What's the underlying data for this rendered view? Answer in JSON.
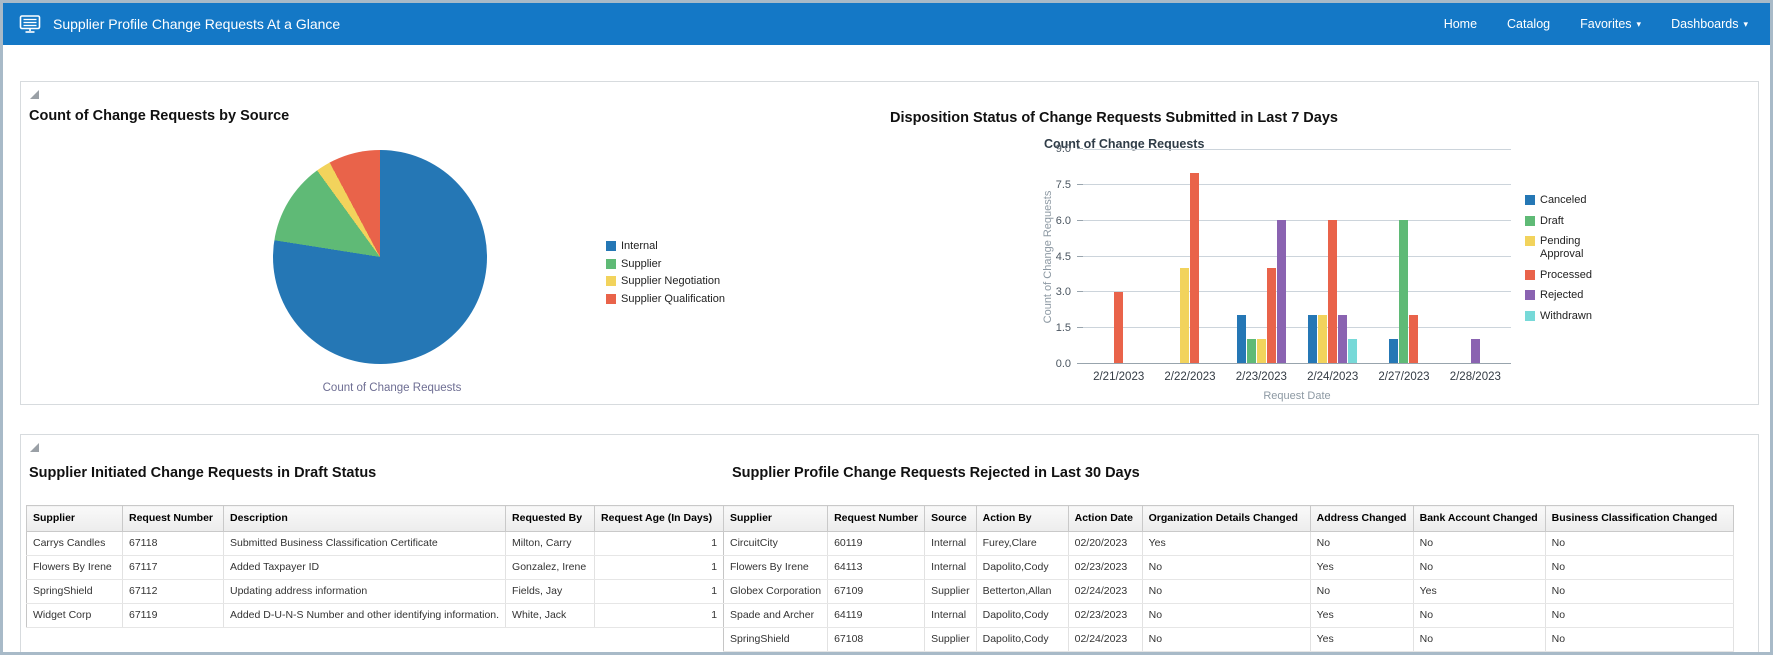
{
  "header": {
    "icon": "dashboard-monitor-icon",
    "title": "Supplier Profile Change Requests At a Glance",
    "nav": [
      {
        "label": "Home",
        "has_dropdown": false
      },
      {
        "label": "Catalog",
        "has_dropdown": false
      },
      {
        "label": "Favorites",
        "has_dropdown": true
      },
      {
        "label": "Dashboards",
        "has_dropdown": true
      }
    ]
  },
  "colors": {
    "header_bg": "#1478c6",
    "grid_line": "#ccd4db",
    "axis_line": "#98a4ad",
    "section_border": "#d7dbde"
  },
  "chart_data": [
    {
      "type": "pie",
      "title": "Count of Change Requests by Source",
      "footer_label": "Count of Change Requests",
      "labels": [
        "Internal",
        "Supplier",
        "Supplier Negotiation",
        "Supplier Qualification"
      ],
      "values_percent": [
        77.5,
        12.5,
        2.2,
        7.8
      ],
      "colors": [
        "#2577b5",
        "#5fba76",
        "#f2d35c",
        "#e9634a"
      ],
      "legend_position": "right"
    },
    {
      "type": "bar",
      "title": "Disposition Status of Change Requests Submitted in Last 7 Days",
      "subtitle": "Count of Change Requests",
      "xlabel": "Request Date",
      "ylabel": "Count of Change Requests",
      "ylim": [
        0,
        9
      ],
      "yticks": [
        0.0,
        1.5,
        3.0,
        4.5,
        6.0,
        7.5,
        9.0
      ],
      "grid": true,
      "legend_position": "right",
      "categories": [
        "2/21/2023",
        "2/22/2023",
        "2/23/2023",
        "2/24/2023",
        "2/27/2023",
        "2/28/2023"
      ],
      "series": [
        {
          "name": "Canceled",
          "color": "#2577b5",
          "values": [
            0,
            0,
            2,
            2,
            1,
            0
          ]
        },
        {
          "name": "Draft",
          "color": "#5fba76",
          "values": [
            0,
            0,
            1,
            0,
            6,
            0
          ]
        },
        {
          "name": "Pending Approval",
          "color": "#f2d35c",
          "values": [
            0,
            4,
            1,
            2,
            0,
            0
          ]
        },
        {
          "name": "Processed",
          "color": "#e9634a",
          "values": [
            3,
            8,
            4,
            6,
            2,
            0
          ]
        },
        {
          "name": "Rejected",
          "color": "#8a63b1",
          "values": [
            0,
            0,
            6,
            2,
            0,
            1
          ]
        },
        {
          "name": "Withdrawn",
          "color": "#77d9d8",
          "values": [
            0,
            0,
            0,
            1,
            0,
            0
          ]
        }
      ]
    }
  ],
  "tables": [
    {
      "title": "Supplier Initiated Change Requests in Draft Status",
      "columns": [
        "Supplier",
        "Request Number",
        "Description",
        "Requested By",
        "Request Age (In Days)"
      ],
      "rows": [
        [
          "Carrys Candles",
          "67118",
          "Submitted Business Classification Certificate",
          "Milton, Carry",
          "1"
        ],
        [
          "Flowers By Irene",
          "67117",
          "Added Taxpayer ID",
          "Gonzalez, Irene",
          "1"
        ],
        [
          "SpringShield",
          "67112",
          "Updating address information",
          "Fields, Jay",
          "1"
        ],
        [
          "Widget Corp",
          "67119",
          "Added D-U-N-S Number and other identifying information.",
          "White, Jack",
          "1"
        ]
      ]
    },
    {
      "title": "Supplier Profile Change Requests Rejected in Last 30 Days",
      "columns": [
        "Supplier",
        "Request Number",
        "Source",
        "Action By",
        "Action Date",
        "Organization Details Changed",
        "Address Changed",
        "Bank Account Changed",
        "Business Classification Changed"
      ],
      "rows": [
        [
          "CircuitCity",
          "60119",
          "Internal",
          "Furey,Clare",
          "02/20/2023",
          "Yes",
          "No",
          "No",
          "No"
        ],
        [
          "Flowers By Irene",
          "64113",
          "Internal",
          "Dapolito,Cody",
          "02/23/2023",
          "No",
          "Yes",
          "No",
          "No"
        ],
        [
          "Globex Corporation",
          "67109",
          "Supplier",
          "Betterton,Allan",
          "02/24/2023",
          "No",
          "No",
          "Yes",
          "No"
        ],
        [
          "Spade and Archer",
          "64119",
          "Internal",
          "Dapolito,Cody",
          "02/23/2023",
          "No",
          "Yes",
          "No",
          "No"
        ],
        [
          "SpringShield",
          "67108",
          "Supplier",
          "Dapolito,Cody",
          "02/24/2023",
          "No",
          "Yes",
          "No",
          "No"
        ]
      ]
    }
  ]
}
